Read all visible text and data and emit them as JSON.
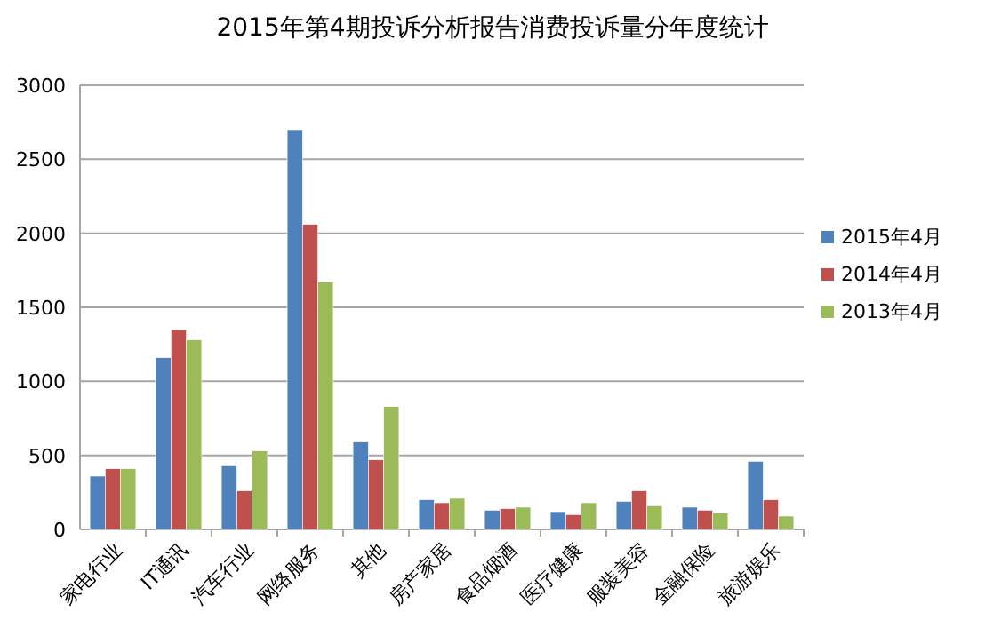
{
  "chart_data": {
    "type": "bar",
    "title": "2015年第4期投诉分析报告消费投诉量分年度统计",
    "categories": [
      "家电行业",
      "IT通讯",
      "汽车行业",
      "网络服务",
      "其他",
      "房产家居",
      "食品烟酒",
      "医疗健康",
      "服装美容",
      "金融保险",
      "旅游娱乐"
    ],
    "series": [
      {
        "name": "2015年4月",
        "color": "#4f81bd",
        "values": [
          360,
          1160,
          430,
          2700,
          590,
          200,
          130,
          120,
          190,
          150,
          460
        ]
      },
      {
        "name": "2014年4月",
        "color": "#c0504d",
        "values": [
          410,
          1350,
          260,
          2060,
          470,
          180,
          140,
          100,
          260,
          130,
          200
        ]
      },
      {
        "name": "2013年4月",
        "color": "#9bbb59",
        "values": [
          410,
          1280,
          530,
          1670,
          830,
          210,
          150,
          180,
          160,
          110,
          90
        ]
      }
    ],
    "ylim": [
      0,
      3000
    ],
    "yticks": [
      0,
      500,
      1000,
      1500,
      2000,
      2500,
      3000
    ],
    "grid": "y",
    "legend": "right"
  }
}
